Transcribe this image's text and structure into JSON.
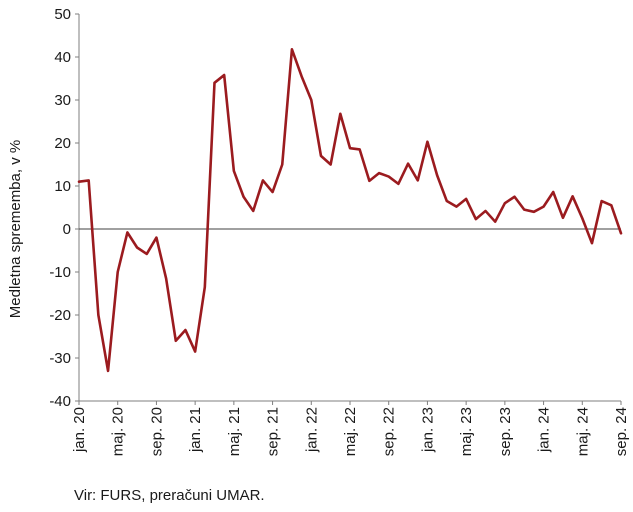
{
  "chart_data": {
    "type": "line",
    "title": "",
    "ylabel": "Medletna sprememba, v %",
    "xlabel": "",
    "ylim": [
      -40,
      50
    ],
    "yticks": [
      -40,
      -30,
      -20,
      -10,
      0,
      10,
      20,
      30,
      40,
      50
    ],
    "x_tick_labels": [
      "jan. 20",
      "maj. 20",
      "sep. 20",
      "jan. 21",
      "maj. 21",
      "sep. 21",
      "jan. 22",
      "maj. 22",
      "sep. 22",
      "jan. 23",
      "maj. 23",
      "sep. 23",
      "jan. 24",
      "maj. 24",
      "sep. 24"
    ],
    "x_start": "2020-01",
    "x_end": "2024-09",
    "grid": false,
    "line_color": "#9b1b1f",
    "series": [
      {
        "name": "",
        "values": [
          11,
          11.3,
          -20,
          -33,
          -10,
          -0.8,
          -4.3,
          -5.8,
          -2,
          -11.5,
          -26,
          -23.5,
          -28.5,
          -13.5,
          34,
          35.8,
          13.5,
          7.5,
          4.2,
          11.3,
          8.6,
          15,
          41.8,
          35.5,
          30,
          17,
          15,
          26.8,
          18.8,
          18.5,
          11.2,
          13,
          12.2,
          10.5,
          15.2,
          11.3,
          20.3,
          12.5,
          6.5,
          5.2,
          7,
          2.3,
          4.2,
          1.7,
          6,
          7.5,
          4.5,
          4,
          5.2,
          8.6,
          2.6,
          7.6,
          2.5,
          -3.3,
          6.5,
          5.5,
          -1
        ]
      }
    ]
  },
  "source_note": "Vir: FURS, preračuni UMAR."
}
